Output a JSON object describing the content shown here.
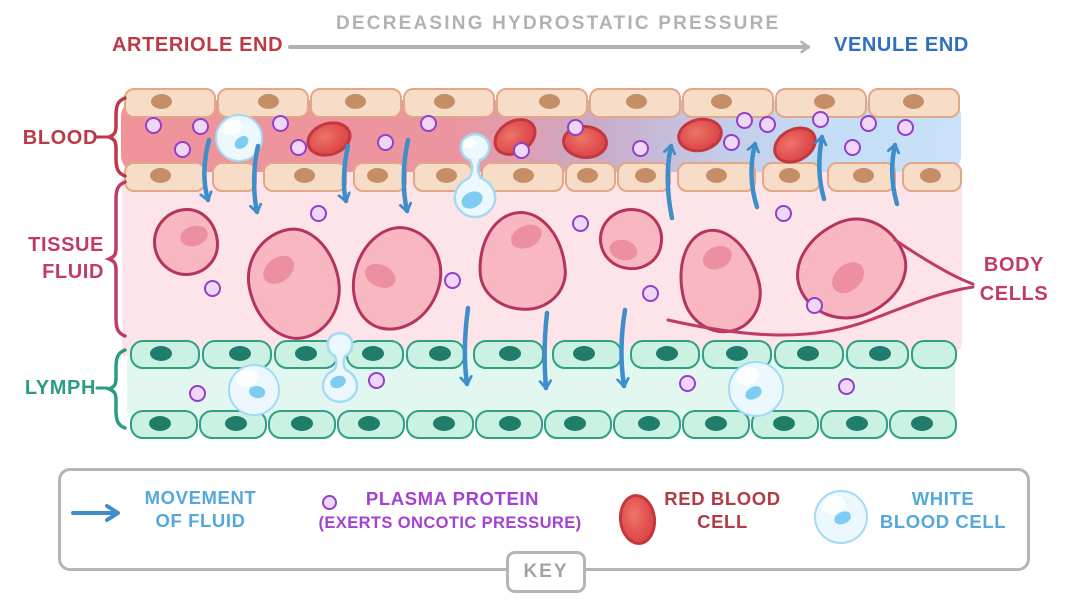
{
  "header": {
    "arteriole": "ARTERIOLE END",
    "pressure": "DECREASING HYDROSTATIC PRESSURE",
    "venule": "VENULE END"
  },
  "labels": {
    "blood": "BLOOD",
    "tissue_line1": "TISSUE",
    "tissue_line2": "FLUID",
    "lymph": "LYMPH",
    "body_cells_line1": "BODY",
    "body_cells_line2": "CELLS"
  },
  "key": {
    "tag": "KEY",
    "items": [
      {
        "icon": "fluid-arrow-icon",
        "line1": "MOVEMENT",
        "line2": "OF FLUID"
      },
      {
        "icon": "plasma-protein-icon",
        "line1": "PLASMA PROTEIN",
        "line2": "(EXERTS ONCOTIC PRESSURE)"
      },
      {
        "icon": "red-blood-cell-icon",
        "line1": "RED BLOOD",
        "line2": "CELL"
      },
      {
        "icon": "white-blood-cell-icon",
        "line1": "WHITE",
        "line2": "BLOOD CELL"
      }
    ]
  },
  "colors": {
    "arteriole_red": "#bc3947",
    "venule_blue": "#2e6fc0",
    "pressure_gray": "#b2b2b2",
    "blood_label_red": "#bc3947",
    "tissue_label_magenta": "#c23a67",
    "lymph_label_teal": "#2a9c85",
    "body_cells_magenta": "#c23a67",
    "fluid_arrow_blue": "#3e8ecb",
    "plasma_protein_purple": "#a440d4",
    "red_blood_cell_red": "#b23b45",
    "white_blood_cell_blue": "#55a8da",
    "key_border_gray": "#b5b5b5",
    "key_tag_gray": "#a2a2a2"
  }
}
